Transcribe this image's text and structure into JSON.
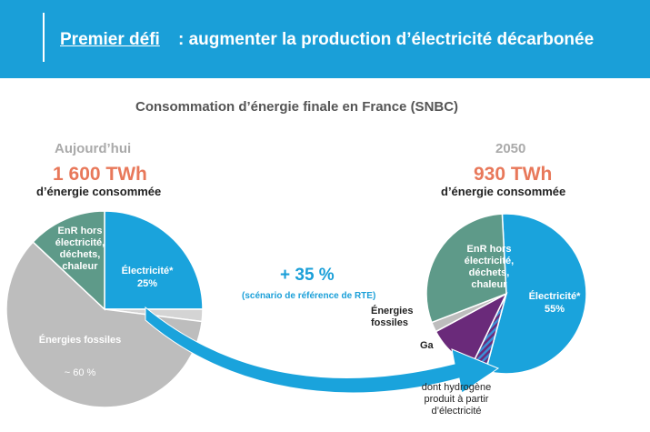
{
  "header": {
    "emphasis": "Premier défi",
    "rest": " : augmenter la production d’électricité décarbonée"
  },
  "subtitle": "Consommation d’énergie finale en France (SNBC)",
  "growth": {
    "value": "+ 35 %",
    "note": "(scénario de référence de RTE)"
  },
  "chart_data": [
    {
      "type": "pie",
      "title": "Aujourd’hui",
      "total": "1 600 TWh",
      "caption": "d’énergie consommée",
      "categories": [
        "Électricité*",
        null,
        "Énergies fossiles",
        "EnR hors électricité, déchets, chaleur"
      ],
      "values": [
        25,
        2,
        60,
        13
      ],
      "value_labels": [
        "25%",
        null,
        "~ 60 %",
        null
      ],
      "colors": [
        "#1aa3dc",
        "#d4d4d4",
        "#bdbdbd",
        "#5e9a89"
      ]
    },
    {
      "type": "pie",
      "title": "2050",
      "total": "930 TWh",
      "caption": "d’énergie consommée",
      "categories": [
        "Électricité*",
        "dont hydrogène produit à partir d’électricité",
        "Ga",
        "Énergies fossiles",
        "EnR hors électricité, déchets, chaleur"
      ],
      "values": [
        55,
        3,
        10,
        2,
        30
      ],
      "value_labels": [
        "55%",
        null,
        null,
        null,
        null
      ],
      "colors": [
        "#1aa3dc",
        "#3b6fb5",
        "#6a2a7a",
        "#bdbdbd",
        "#5e9a89"
      ]
    }
  ]
}
